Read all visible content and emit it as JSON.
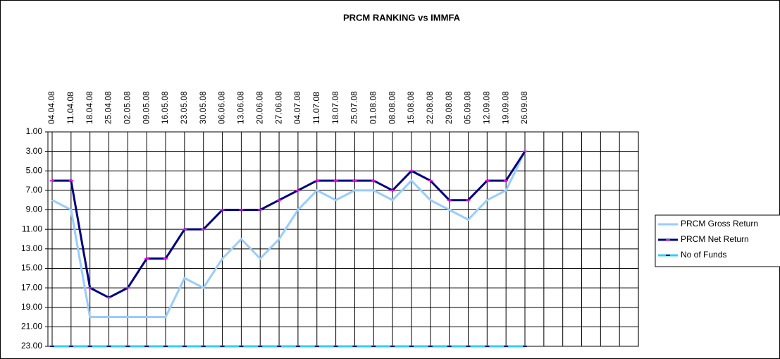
{
  "chart_data": {
    "type": "line",
    "title": "PRCM RANKING vs IMMFA",
    "categories": [
      "04.04.08",
      "11.04.08",
      "18.04.08",
      "25.04.08",
      "02.05.08",
      "09.05.08",
      "16.05.08",
      "23.05.08",
      "30.05.08",
      "06.06.08",
      "13.06.08",
      "20.06.08",
      "27.06.08",
      "04.07.08",
      "11.07.08",
      "18.07.08",
      "25.07.08",
      "01.08.08",
      "08.08.08",
      "15.08.08",
      "22.08.08",
      "29.08.08",
      "05.09.08",
      "12.09.08",
      "19.09.08",
      "26.09.08",
      null,
      null,
      null,
      null,
      null,
      null
    ],
    "series": [
      {
        "name": "PRCM Gross Return",
        "color": "#99ccff",
        "values": [
          8,
          9,
          20,
          20,
          20,
          20,
          20,
          16,
          17,
          14,
          12,
          14,
          12,
          9,
          7,
          8,
          7,
          7,
          8,
          6,
          8,
          9,
          10,
          8,
          7,
          3,
          null,
          null,
          null,
          null,
          null,
          null
        ]
      },
      {
        "name": "PRCM Net Return",
        "color": "#000080",
        "marker_color": "#ff00ff",
        "values": [
          6,
          6,
          17,
          18,
          17,
          14,
          14,
          11,
          11,
          9,
          9,
          9,
          8,
          7,
          6,
          6,
          6,
          6,
          7,
          5,
          6,
          8,
          8,
          6,
          6,
          3,
          null,
          null,
          null,
          null,
          null,
          null
        ]
      },
      {
        "name": "No of Funds",
        "color": "#33ccff",
        "marker_color": "#000080",
        "values": [
          23,
          23,
          23,
          23,
          23,
          23,
          23,
          23,
          23,
          23,
          23,
          23,
          23,
          23,
          23,
          23,
          23,
          23,
          23,
          23,
          23,
          23,
          23,
          23,
          23,
          23,
          null,
          null,
          null,
          null,
          null,
          null
        ]
      }
    ],
    "ylim": [
      1,
      23
    ],
    "y_inverted": true,
    "yticks": [
      {
        "value": 1,
        "label": "1.00"
      },
      {
        "value": 3,
        "label": "3.00"
      },
      {
        "value": 5,
        "label": "5.00"
      },
      {
        "value": 7,
        "label": "7.00"
      },
      {
        "value": 9,
        "label": "9.00"
      },
      {
        "value": 11,
        "label": "11.00"
      },
      {
        "value": 13,
        "label": "13.00"
      },
      {
        "value": 15,
        "label": "15.00"
      },
      {
        "value": 17,
        "label": "17.00"
      },
      {
        "value": 19,
        "label": "19.00"
      },
      {
        "value": 21,
        "label": "21.00"
      },
      {
        "value": 23,
        "label": "23.00"
      }
    ],
    "grid": true,
    "legend": "right"
  }
}
